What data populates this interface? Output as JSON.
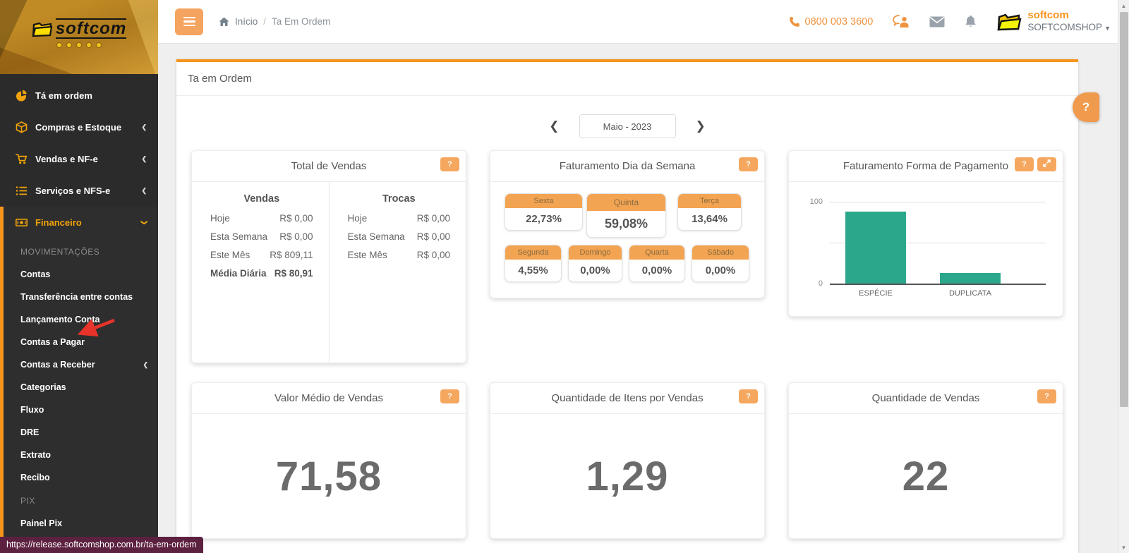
{
  "ui": {
    "help_label": "?"
  },
  "colors": {
    "accent_orange": "#f7941e",
    "soft_orange_button": "#f5a75f",
    "tile_header_orange": "#f3a452",
    "bar_teal": "#2ba78c",
    "sidebar_bg": "#2b2b2b",
    "statusbar_bg": "#5d2140",
    "big_number_gray": "#6b6b6b"
  },
  "sidebar": {
    "logo_text": "softcom",
    "items": [
      {
        "label": "Tá em ordem",
        "icon": "pie-chart-icon"
      },
      {
        "label": "Compras e Estoque",
        "icon": "box-icon",
        "chevron": "left"
      },
      {
        "label": "Vendas e NF-e",
        "icon": "cart-icon",
        "chevron": "left"
      },
      {
        "label": "Serviços e NFS-e",
        "icon": "list-icon",
        "chevron": "left"
      },
      {
        "label": "Financeiro",
        "icon": "money-icon",
        "chevron": "down",
        "active": true
      }
    ],
    "submenu": {
      "section1": "MOVIMENTAÇÕES",
      "items1": [
        "Contas",
        "Transferência entre contas",
        "Lançamento Conta",
        "Contas a Pagar",
        "Contas a Receber",
        "Categorias",
        "Fluxo",
        "DRE",
        "Extrato",
        "Recibo"
      ],
      "section2": "PIX",
      "items2": [
        "Painel Pix"
      ]
    }
  },
  "header": {
    "breadcrumb": {
      "home": "Início",
      "separator": "/",
      "current": "Ta Em Ordem"
    },
    "phone": "0800 003 3600",
    "icons": [
      "phone-icon",
      "chat-icon",
      "envelope-icon",
      "bell-icon"
    ],
    "account": {
      "brand": "softcom",
      "name": "SOFTCOMSHOP"
    }
  },
  "panel": {
    "title": "Ta em Ordem"
  },
  "month_nav": {
    "label": "Maio - 2023"
  },
  "cards": {
    "total_vendas": {
      "title": "Total de Vendas",
      "vendas": {
        "heading": "Vendas",
        "rows": [
          {
            "label": "Hoje",
            "value": "R$ 0,00"
          },
          {
            "label": "Esta Semana",
            "value": "R$ 0,00"
          },
          {
            "label": "Este Mês",
            "value": "R$ 809,11"
          },
          {
            "label": "Média Diária",
            "value": "R$ 80,91"
          }
        ]
      },
      "trocas": {
        "heading": "Trocas",
        "rows": [
          {
            "label": "Hoje",
            "value": "R$ 0,00"
          },
          {
            "label": "Esta Semana",
            "value": "R$ 0,00"
          },
          {
            "label": "Este Mês",
            "value": "R$ 0,00"
          }
        ]
      }
    },
    "dia_semana": {
      "title": "Faturamento Dia da Semana",
      "tiles": [
        {
          "day": "Sexta",
          "value": "22,73%"
        },
        {
          "day": "Quinta",
          "value": "59,08%"
        },
        {
          "day": "Terça",
          "value": "13,64%"
        },
        {
          "day": "Segunda",
          "value": "4,55%"
        },
        {
          "day": "Domingo",
          "value": "0,00%"
        },
        {
          "day": "Quarta",
          "value": "0,00%"
        },
        {
          "day": "Sábado",
          "value": "0,00%"
        }
      ]
    },
    "forma_pagamento": {
      "title": "Faturamento Forma de Pagamento"
    },
    "valor_medio": {
      "title": "Valor Médio de Vendas",
      "value": "71,58"
    },
    "itens_por_venda": {
      "title": "Quantidade de Itens por Vendas",
      "value": "1,29"
    },
    "qtd_vendas": {
      "title": "Quantidade de Vendas",
      "value": "22"
    }
  },
  "chart_data": {
    "type": "bar",
    "title": "Faturamento Forma de Pagamento",
    "categories": [
      "ESPÉCIE",
      "DUPLICATA"
    ],
    "values": [
      88,
      13
    ],
    "ylim": [
      0,
      100
    ],
    "ytick_labels": [
      "100",
      "0"
    ],
    "grid": true,
    "bar_color": "#2ba78c"
  },
  "statusbar": {
    "url": "https://release.softcomshop.com.br/ta-em-ordem"
  }
}
